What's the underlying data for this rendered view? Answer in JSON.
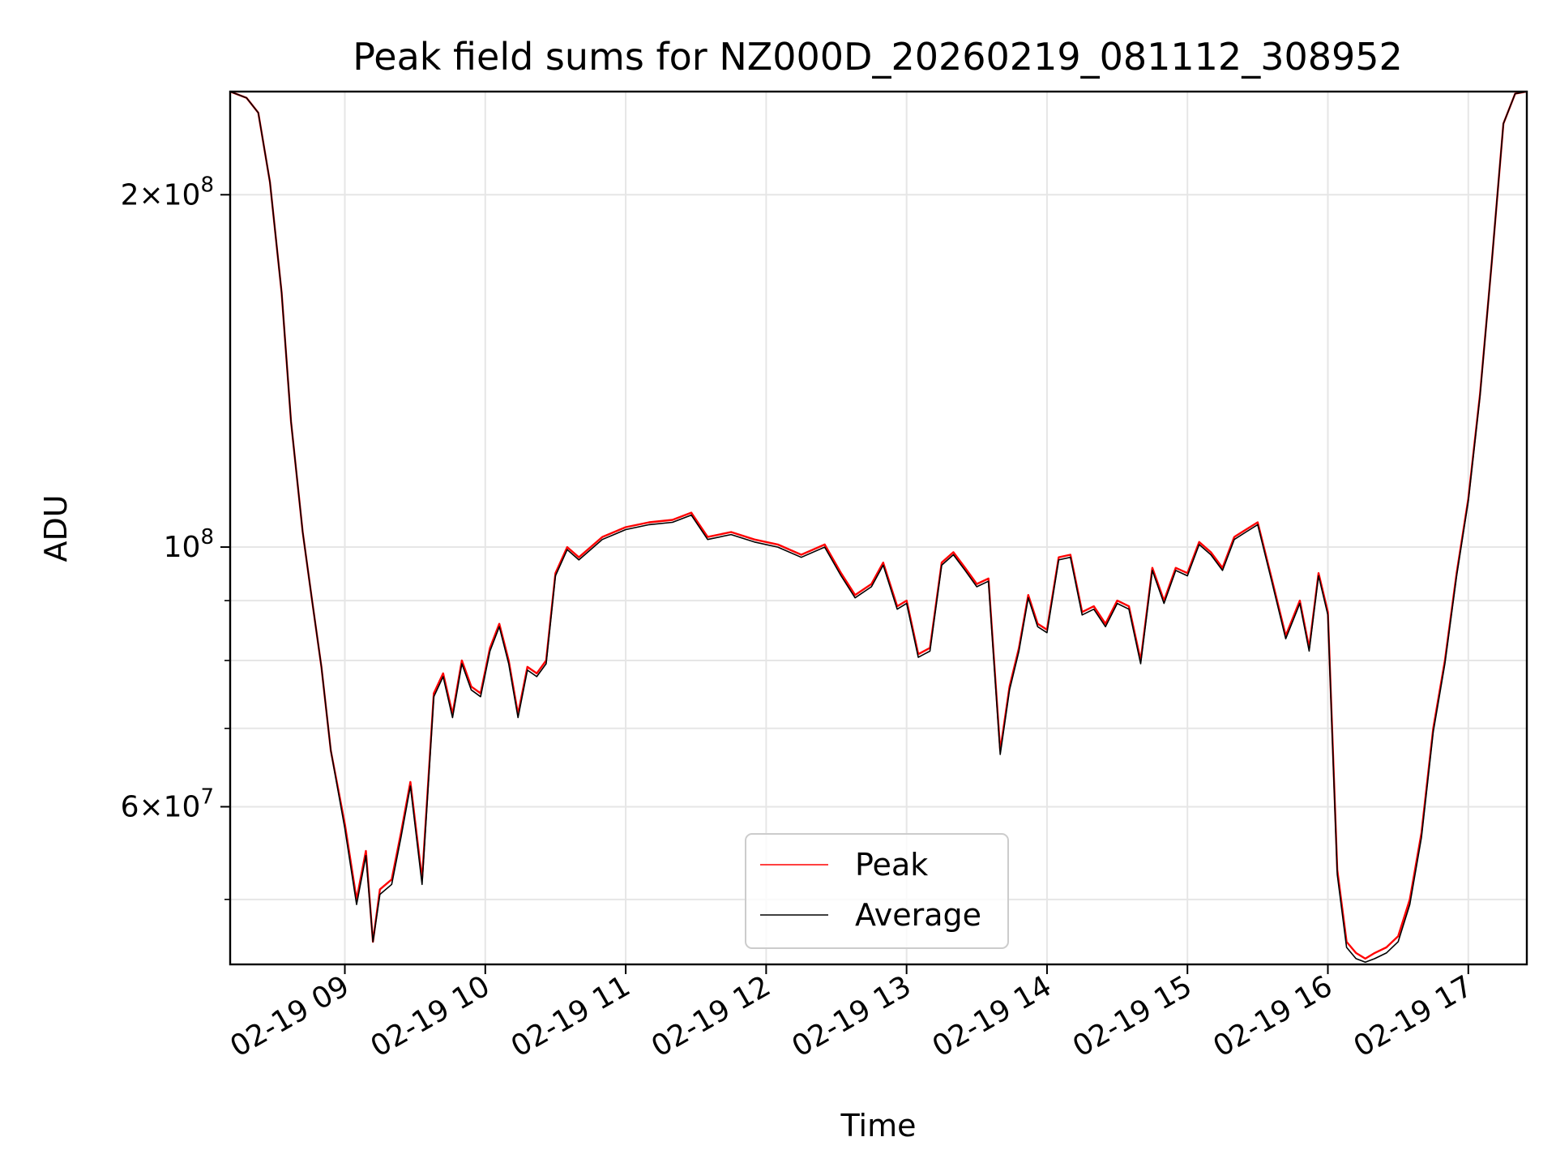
{
  "chart_data": {
    "type": "line",
    "title": "Peak field sums for NZ000D_20260219_081112_308952",
    "xlabel": "Time",
    "ylabel": "ADU",
    "y_scale": "log",
    "xlim": [
      "02-19 08:11",
      "02-19 17:25"
    ],
    "ylim": [
      44000000,
      245000000
    ],
    "grid": true,
    "x_ticks": [
      "02-19 09",
      "02-19 10",
      "02-19 11",
      "02-19 12",
      "02-19 13",
      "02-19 14",
      "02-19 15",
      "02-19 16",
      "02-19 17"
    ],
    "y_ticks": [
      {
        "value": 200000000,
        "label_base": "2",
        "label_exp": "8"
      },
      {
        "value": 100000000,
        "label_base": "",
        "label_exp": "8"
      },
      {
        "value": 60000000,
        "label_base": "6",
        "label_exp": "7"
      }
    ],
    "legend": {
      "position": "lower-center"
    },
    "series": [
      {
        "name": "Peak",
        "color": "#ff0000",
        "x": [
          "02-19 08:11",
          "02-19 08:18",
          "02-19 08:23",
          "02-19 08:28",
          "02-19 08:33",
          "02-19 08:37",
          "02-19 08:42",
          "02-19 08:46",
          "02-19 08:50",
          "02-19 08:54",
          "02-19 09:00",
          "02-19 09:05",
          "02-19 09:09",
          "02-19 09:12",
          "02-19 09:15",
          "02-19 09:20",
          "02-19 09:24",
          "02-19 09:28",
          "02-19 09:33",
          "02-19 09:38",
          "02-19 09:42",
          "02-19 09:46",
          "02-19 09:50",
          "02-19 09:54",
          "02-19 09:58",
          "02-19 10:02",
          "02-19 10:06",
          "02-19 10:10",
          "02-19 10:14",
          "02-19 10:18",
          "02-19 10:22",
          "02-19 10:26",
          "02-19 10:30",
          "02-19 10:35",
          "02-19 10:40",
          "02-19 10:50",
          "02-19 11:00",
          "02-19 11:10",
          "02-19 11:20",
          "02-19 11:28",
          "02-19 11:35",
          "02-19 11:45",
          "02-19 11:55",
          "02-19 12:05",
          "02-19 12:15",
          "02-19 12:25",
          "02-19 12:32",
          "02-19 12:38",
          "02-19 12:45",
          "02-19 12:50",
          "02-19 12:56",
          "02-19 13:00",
          "02-19 13:05",
          "02-19 13:10",
          "02-19 13:15",
          "02-19 13:20",
          "02-19 13:25",
          "02-19 13:30",
          "02-19 13:35",
          "02-19 13:40",
          "02-19 13:44",
          "02-19 13:48",
          "02-19 13:52",
          "02-19 13:56",
          "02-19 14:00",
          "02-19 14:05",
          "02-19 14:10",
          "02-19 14:15",
          "02-19 14:20",
          "02-19 14:25",
          "02-19 14:30",
          "02-19 14:35",
          "02-19 14:40",
          "02-19 14:45",
          "02-19 14:50",
          "02-19 14:55",
          "02-19 15:00",
          "02-19 15:05",
          "02-19 15:10",
          "02-19 15:15",
          "02-19 15:20",
          "02-19 15:25",
          "02-19 15:30",
          "02-19 15:36",
          "02-19 15:42",
          "02-19 15:48",
          "02-19 15:52",
          "02-19 15:56",
          "02-19 16:00",
          "02-19 16:04",
          "02-19 16:08",
          "02-19 16:12",
          "02-19 16:16",
          "02-19 16:20",
          "02-19 16:25",
          "02-19 16:30",
          "02-19 16:35",
          "02-19 16:40",
          "02-19 16:45",
          "02-19 16:50",
          "02-19 16:55",
          "02-19 17:00",
          "02-19 17:05",
          "02-19 17:10",
          "02-19 17:15",
          "02-19 17:20",
          "02-19 17:25"
        ],
        "y": [
          245000000,
          242000000,
          235000000,
          205000000,
          165000000,
          128000000,
          103000000,
          90000000,
          79000000,
          67000000,
          58000000,
          50000000,
          55000000,
          46000000,
          51000000,
          52000000,
          57000000,
          63000000,
          52000000,
          75000000,
          78000000,
          72000000,
          80000000,
          76000000,
          75000000,
          82000000,
          86000000,
          80000000,
          72000000,
          79000000,
          78000000,
          80000000,
          95000000,
          100000000,
          98000000,
          102000000,
          104000000,
          105000000,
          105500000,
          107000000,
          102000000,
          103000000,
          101500000,
          100500000,
          98500000,
          100500000,
          95000000,
          91000000,
          93000000,
          97000000,
          89000000,
          90000000,
          81000000,
          82000000,
          97000000,
          99000000,
          96000000,
          93000000,
          94000000,
          67000000,
          76000000,
          82000000,
          91000000,
          86000000,
          85000000,
          98000000,
          98500000,
          88000000,
          89000000,
          86000000,
          90000000,
          89000000,
          80000000,
          96000000,
          90000000,
          96000000,
          95000000,
          101000000,
          99000000,
          96000000,
          102000000,
          103500000,
          105000000,
          94000000,
          84000000,
          90000000,
          82000000,
          95000000,
          88000000,
          53000000,
          46000000,
          45000000,
          44500000,
          45000000,
          45500000,
          46500000,
          50000000,
          57000000,
          70000000,
          80000000,
          95000000,
          110000000,
          135000000,
          175000000,
          230000000,
          244000000,
          245000000
        ]
      },
      {
        "name": "Average",
        "color": "#000000",
        "x": [
          "02-19 08:11",
          "02-19 08:18",
          "02-19 08:23",
          "02-19 08:28",
          "02-19 08:33",
          "02-19 08:37",
          "02-19 08:42",
          "02-19 08:46",
          "02-19 08:50",
          "02-19 08:54",
          "02-19 09:00",
          "02-19 09:05",
          "02-19 09:09",
          "02-19 09:12",
          "02-19 09:15",
          "02-19 09:20",
          "02-19 09:24",
          "02-19 09:28",
          "02-19 09:33",
          "02-19 09:38",
          "02-19 09:42",
          "02-19 09:46",
          "02-19 09:50",
          "02-19 09:54",
          "02-19 09:58",
          "02-19 10:02",
          "02-19 10:06",
          "02-19 10:10",
          "02-19 10:14",
          "02-19 10:18",
          "02-19 10:22",
          "02-19 10:26",
          "02-19 10:30",
          "02-19 10:35",
          "02-19 10:40",
          "02-19 10:50",
          "02-19 11:00",
          "02-19 11:10",
          "02-19 11:20",
          "02-19 11:28",
          "02-19 11:35",
          "02-19 11:45",
          "02-19 11:55",
          "02-19 12:05",
          "02-19 12:15",
          "02-19 12:25",
          "02-19 12:32",
          "02-19 12:38",
          "02-19 12:45",
          "02-19 12:50",
          "02-19 12:56",
          "02-19 13:00",
          "02-19 13:05",
          "02-19 13:10",
          "02-19 13:15",
          "02-19 13:20",
          "02-19 13:25",
          "02-19 13:30",
          "02-19 13:35",
          "02-19 13:40",
          "02-19 13:44",
          "02-19 13:48",
          "02-19 13:52",
          "02-19 13:56",
          "02-19 14:00",
          "02-19 14:05",
          "02-19 14:10",
          "02-19 14:15",
          "02-19 14:20",
          "02-19 14:25",
          "02-19 14:30",
          "02-19 14:35",
          "02-19 14:40",
          "02-19 14:45",
          "02-19 14:50",
          "02-19 14:55",
          "02-19 15:00",
          "02-19 15:05",
          "02-19 15:10",
          "02-19 15:15",
          "02-19 15:20",
          "02-19 15:25",
          "02-19 15:30",
          "02-19 15:36",
          "02-19 15:42",
          "02-19 15:48",
          "02-19 15:52",
          "02-19 15:56",
          "02-19 16:00",
          "02-19 16:04",
          "02-19 16:08",
          "02-19 16:12",
          "02-19 16:16",
          "02-19 16:20",
          "02-19 16:25",
          "02-19 16:30",
          "02-19 16:35",
          "02-19 16:40",
          "02-19 16:45",
          "02-19 16:50",
          "02-19 16:55",
          "02-19 17:00",
          "02-19 17:05",
          "02-19 17:10",
          "02-19 17:15",
          "02-19 17:20",
          "02-19 17:25"
        ],
        "y": [
          245000000,
          242000000,
          235000000,
          205000000,
          165000000,
          128000000,
          103000000,
          90000000,
          79000000,
          67000000,
          57500000,
          49500000,
          54500000,
          46000000,
          50500000,
          51500000,
          56500000,
          62500000,
          51500000,
          74500000,
          77500000,
          71500000,
          79500000,
          75500000,
          74500000,
          81500000,
          85500000,
          79500000,
          71500000,
          78500000,
          77500000,
          79500000,
          94500000,
          99500000,
          97500000,
          101500000,
          103500000,
          104500000,
          105000000,
          106500000,
          101500000,
          102500000,
          101000000,
          100000000,
          98000000,
          100000000,
          94500000,
          90500000,
          92500000,
          96500000,
          88500000,
          89500000,
          80500000,
          81500000,
          96500000,
          98500000,
          95500000,
          92500000,
          93500000,
          66500000,
          75500000,
          81500000,
          90500000,
          85500000,
          84500000,
          97500000,
          98000000,
          87500000,
          88500000,
          85500000,
          89500000,
          88500000,
          79500000,
          95500000,
          89500000,
          95500000,
          94500000,
          100500000,
          98500000,
          95500000,
          101500000,
          103000000,
          104500000,
          93500000,
          83500000,
          89500000,
          81500000,
          94500000,
          87500000,
          52500000,
          45500000,
          44500000,
          44200000,
          44500000,
          45000000,
          46000000,
          49500000,
          56500000,
          69500000,
          79500000,
          94500000,
          109500000,
          134500000,
          175000000,
          230000000,
          244000000,
          245000000
        ]
      }
    ]
  }
}
